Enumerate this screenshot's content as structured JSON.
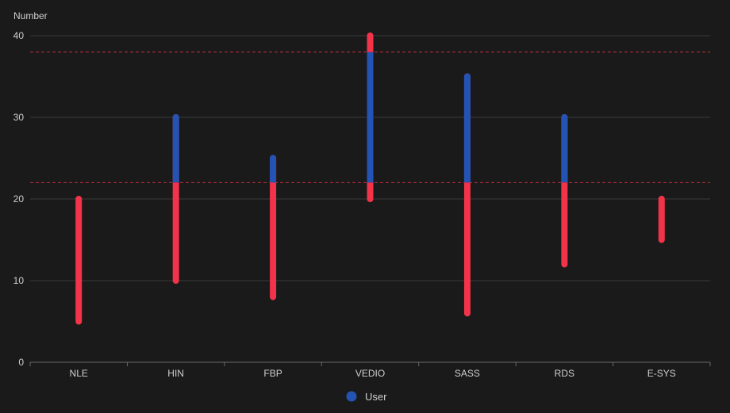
{
  "chart_data": {
    "type": "range-bar",
    "ylabel": "Number",
    "ylim": [
      0,
      40
    ],
    "yticks": [
      0,
      10,
      20,
      30,
      40
    ],
    "categories": [
      "NLE",
      "HIN",
      "FBP",
      "VEDIO",
      "SASS",
      "RDS",
      "E-SYS"
    ],
    "series": [
      {
        "name": "User",
        "ranges": [
          [
            5,
            20
          ],
          [
            10,
            30
          ],
          [
            8,
            25
          ],
          [
            20,
            40
          ],
          [
            6,
            35
          ],
          [
            12,
            30
          ],
          [
            15,
            20
          ]
        ]
      }
    ],
    "thresholds": [
      22,
      38
    ],
    "grid": true,
    "legend": "bottom-center",
    "colors": {
      "inside_band": "#2453b3",
      "outside_band": "#f2334a",
      "threshold_line": "#c0313e",
      "grid": "#3a3a3a",
      "axis": "#6a6a6a",
      "text": "#cfcfcf"
    }
  }
}
